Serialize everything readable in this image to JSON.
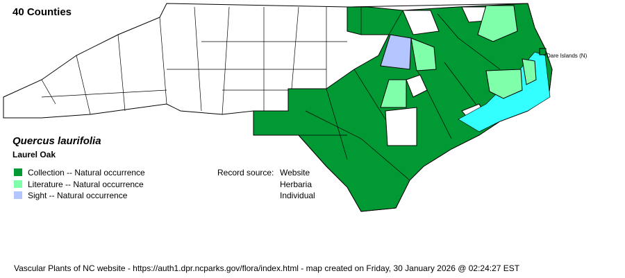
{
  "county_count": "40 Counties",
  "species": {
    "scientific_name": "Quercus laurifolia",
    "common_name": "Laurel Oak"
  },
  "legend": [
    {
      "label": "Collection -- Natural occurrence",
      "color": "#009933"
    },
    {
      "label": "Literature -- Natural occurrence",
      "color": "#80FFAA"
    },
    {
      "label": "Sight -- Natural occurrence",
      "color": "#B3C6FF"
    }
  ],
  "record_source": {
    "label": "Record source:",
    "values": [
      "Website",
      "Herbaria",
      "Individual"
    ]
  },
  "map": {
    "state": "North Carolina",
    "water_color": "#33FFFF",
    "annotation": "Dare Islands (N)"
  },
  "footer": "Vascular Plants of NC website - https://auth1.dpr.ncparks.gov/flora/index.html - map created on Friday, 30 January 2026 @ 02:24:27 EST"
}
